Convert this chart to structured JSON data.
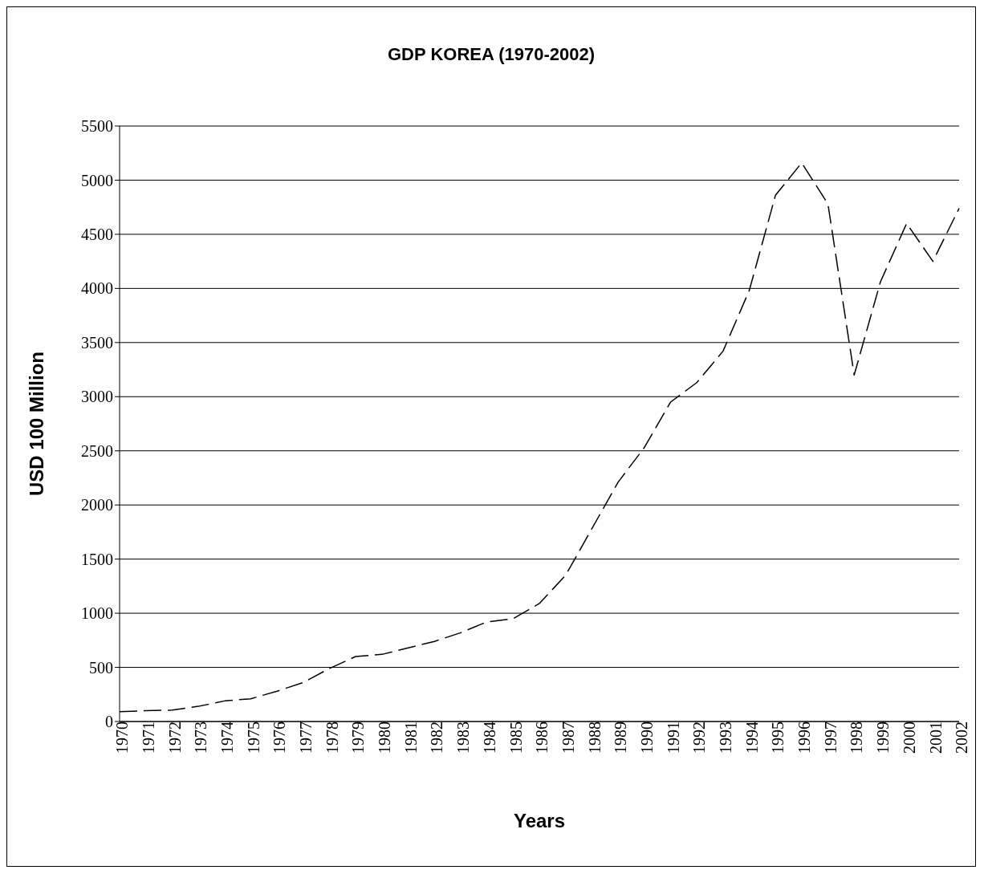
{
  "chart_data": {
    "type": "line",
    "title": "GDP KOREA (1970-2002)",
    "xlabel": "Years",
    "ylabel": "USD 100 Million",
    "categories": [
      "1970",
      "1971",
      "1972",
      "1973",
      "1974",
      "1975",
      "1976",
      "1977",
      "1978",
      "1979",
      "1980",
      "1981",
      "1982",
      "1983",
      "1984",
      "1985",
      "1986",
      "1987",
      "1988",
      "1989",
      "1990",
      "1991",
      "1992",
      "1993",
      "1994",
      "1995",
      "1996",
      "1997",
      "1998",
      "1999",
      "2000",
      "2001",
      "2002"
    ],
    "series": [
      {
        "color": "#000000",
        "values": [
          90,
          100,
          105,
          140,
          190,
          210,
          280,
          360,
          490,
          600,
          620,
          680,
          740,
          820,
          920,
          950,
          1090,
          1350,
          1780,
          2210,
          2530,
          2950,
          3130,
          3420,
          3980,
          4860,
          5160,
          4780,
          3200,
          4060,
          4600,
          4250,
          4740
        ]
      }
    ],
    "ylim": [
      0,
      5500
    ],
    "yticks": [
      0,
      500,
      1000,
      1500,
      2000,
      2500,
      3000,
      3500,
      4000,
      4500,
      5000,
      5500
    ],
    "grid": "y",
    "marker": "none",
    "line_style": "dashed"
  }
}
